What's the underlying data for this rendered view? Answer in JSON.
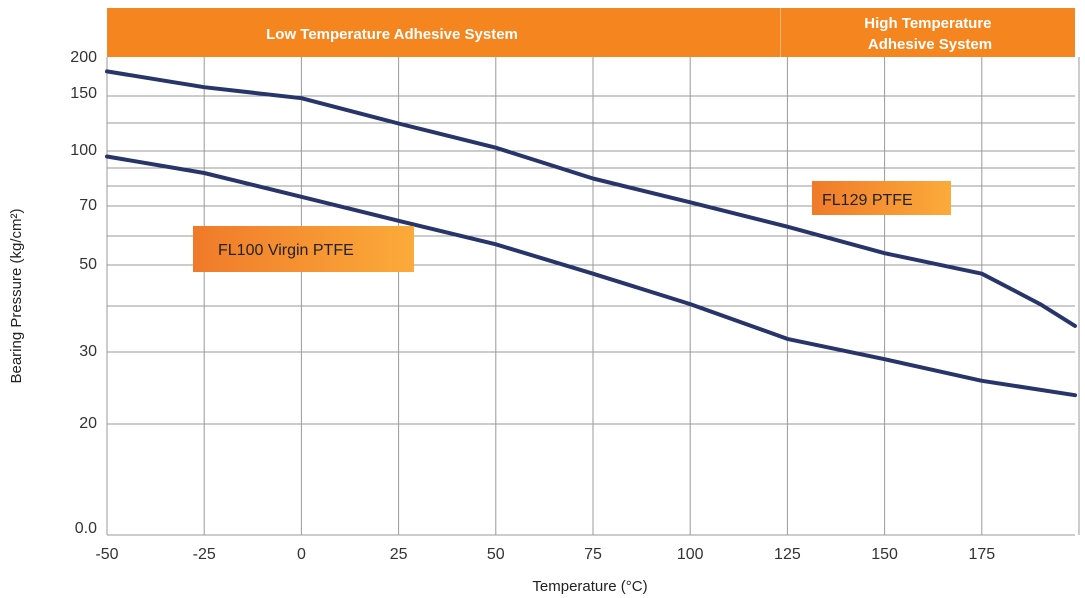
{
  "chart_data": {
    "type": "line",
    "title": "",
    "xlabel": "Temperature (°C)",
    "ylabel": "Bearing Pressure (kg/cm²)",
    "x_tick_labels": [
      "-50",
      "-25",
      "0",
      "25",
      "50",
      "75",
      "100",
      "125",
      "150",
      "175"
    ],
    "y_tick_labels": [
      "0.0",
      "20",
      "30",
      "50",
      "70",
      "100",
      "150",
      "200"
    ],
    "xlim": [
      -50,
      200
    ],
    "y_scale": "nonuniform",
    "grid": true,
    "temperature_bands": [
      {
        "label": "Low Temperature Adhesive System",
        "range": [
          -50,
          125
        ]
      },
      {
        "label": [
          "High Temperature",
          "Adhesive System"
        ],
        "range": [
          125,
          200
        ]
      }
    ],
    "series": [
      {
        "name": "FL129 PTFE",
        "color": "#27356b",
        "x": [
          -50,
          -25,
          0,
          25,
          50,
          75,
          100,
          125,
          150,
          175,
          190,
          200
        ],
        "y": [
          178,
          160,
          148,
          125,
          103,
          85,
          72,
          63,
          54,
          48,
          41,
          36
        ]
      },
      {
        "name": "FL100 Virgin PTFE",
        "color": "#27356b",
        "x": [
          -50,
          -25,
          0,
          25,
          50,
          75,
          100,
          125,
          150,
          175,
          200
        ],
        "y": [
          97,
          88,
          75,
          65,
          57,
          48,
          41,
          33,
          29,
          26,
          24
        ]
      }
    ],
    "callouts": [
      {
        "text": "FL129 PTFE",
        "series": "FL129 PTFE"
      },
      {
        "text": "FL100 Virgin PTFE",
        "series": "FL100 Virgin PTFE"
      }
    ]
  }
}
